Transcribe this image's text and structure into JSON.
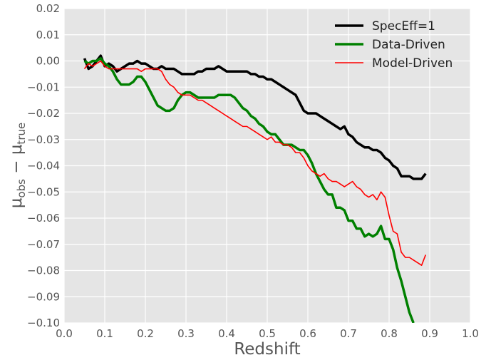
{
  "chart_data": {
    "type": "line",
    "x_label": "Redshift",
    "y_label": [
      "μ",
      "obs",
      " − μ",
      "true"
    ],
    "xlim": [
      0,
      1
    ],
    "ylim": [
      -0.1,
      0.02
    ],
    "grid": true,
    "legend": "upper right",
    "xticks": [
      {
        "value": 0,
        "label": "0.0"
      },
      {
        "value": 0.1,
        "label": "0.1"
      },
      {
        "value": 0.2,
        "label": "0.2"
      },
      {
        "value": 0.3,
        "label": "0.3"
      },
      {
        "value": 0.4,
        "label": "0.4"
      },
      {
        "value": 0.5,
        "label": "0.5"
      },
      {
        "value": 0.6,
        "label": "0.6"
      },
      {
        "value": 0.7,
        "label": "0.7"
      },
      {
        "value": 0.8,
        "label": "0.8"
      },
      {
        "value": 0.9,
        "label": "0.9"
      },
      {
        "value": 1,
        "label": "1.0"
      }
    ],
    "yticks": [
      {
        "value": 0.02,
        "label": "0.02"
      },
      {
        "value": 0.01,
        "label": "0.01"
      },
      {
        "value": 0,
        "label": "0.00"
      },
      {
        "value": -0.01,
        "label": "−0.01"
      },
      {
        "value": -0.02,
        "label": "−0.02"
      },
      {
        "value": -0.03,
        "label": "−0.03"
      },
      {
        "value": -0.04,
        "label": "−0.04"
      },
      {
        "value": -0.05,
        "label": "−0.05"
      },
      {
        "value": -0.06,
        "label": "−0.06"
      },
      {
        "value": -0.07,
        "label": "−0.07"
      },
      {
        "value": -0.08,
        "label": "−0.08"
      },
      {
        "value": -0.09,
        "label": "−0.09"
      },
      {
        "value": -0.1,
        "label": "−0.10"
      }
    ],
    "x": [
      0.05,
      0.06,
      0.07,
      0.08,
      0.09,
      0.1,
      0.11,
      0.12,
      0.13,
      0.14,
      0.15,
      0.16,
      0.17,
      0.18,
      0.19,
      0.2,
      0.21,
      0.22,
      0.23,
      0.24,
      0.25,
      0.26,
      0.27,
      0.28,
      0.29,
      0.3,
      0.31,
      0.32,
      0.33,
      0.34,
      0.35,
      0.36,
      0.37,
      0.38,
      0.39,
      0.4,
      0.41,
      0.42,
      0.43,
      0.44,
      0.45,
      0.46,
      0.47,
      0.48,
      0.49,
      0.5,
      0.51,
      0.52,
      0.53,
      0.54,
      0.55,
      0.56,
      0.57,
      0.58,
      0.59,
      0.6,
      0.61,
      0.62,
      0.63,
      0.64,
      0.65,
      0.66,
      0.67,
      0.68,
      0.69,
      0.7,
      0.71,
      0.72,
      0.73,
      0.74,
      0.75,
      0.76,
      0.77,
      0.78,
      0.79,
      0.8,
      0.81,
      0.82,
      0.83,
      0.84,
      0.85,
      0.86,
      0.87,
      0.88,
      0.89
    ],
    "series": [
      {
        "name": "SpecEff=1",
        "color": "#000000",
        "width": 3.5,
        "values": [
          0.001,
          -0.003,
          -0.002,
          0.0,
          0.002,
          -0.002,
          -0.001,
          -0.002,
          -0.004,
          -0.003,
          -0.002,
          -0.001,
          -0.001,
          0.0,
          -0.001,
          -0.001,
          -0.002,
          -0.003,
          -0.003,
          -0.002,
          -0.003,
          -0.003,
          -0.003,
          -0.004,
          -0.005,
          -0.005,
          -0.005,
          -0.005,
          -0.004,
          -0.004,
          -0.003,
          -0.003,
          -0.003,
          -0.002,
          -0.003,
          -0.004,
          -0.004,
          -0.004,
          -0.004,
          -0.004,
          -0.004,
          -0.005,
          -0.005,
          -0.006,
          -0.006,
          -0.007,
          -0.007,
          -0.008,
          -0.009,
          -0.01,
          -0.011,
          -0.012,
          -0.013,
          -0.016,
          -0.019,
          -0.02,
          -0.02,
          -0.02,
          -0.021,
          -0.022,
          -0.023,
          -0.024,
          -0.025,
          -0.026,
          -0.025,
          -0.028,
          -0.029,
          -0.031,
          -0.032,
          -0.033,
          -0.033,
          -0.034,
          -0.034,
          -0.035,
          -0.037,
          -0.038,
          -0.04,
          -0.041,
          -0.044,
          -0.044,
          -0.044,
          -0.045,
          -0.045,
          -0.045,
          -0.043
        ]
      },
      {
        "name": "Data-Driven",
        "color": "#008000",
        "width": 3.5,
        "values": [
          0.0,
          -0.001,
          0.0,
          0.0,
          0.001,
          -0.001,
          -0.002,
          -0.004,
          -0.007,
          -0.009,
          -0.009,
          -0.009,
          -0.008,
          -0.006,
          -0.006,
          -0.008,
          -0.011,
          -0.014,
          -0.017,
          -0.018,
          -0.019,
          -0.019,
          -0.018,
          -0.015,
          -0.013,
          -0.012,
          -0.012,
          -0.013,
          -0.014,
          -0.014,
          -0.014,
          -0.014,
          -0.014,
          -0.013,
          -0.013,
          -0.013,
          -0.013,
          -0.014,
          -0.016,
          -0.018,
          -0.019,
          -0.021,
          -0.022,
          -0.024,
          -0.025,
          -0.027,
          -0.028,
          -0.028,
          -0.03,
          -0.032,
          -0.032,
          -0.032,
          -0.033,
          -0.034,
          -0.034,
          -0.036,
          -0.039,
          -0.043,
          -0.046,
          -0.049,
          -0.051,
          -0.051,
          -0.056,
          -0.056,
          -0.057,
          -0.061,
          -0.061,
          -0.064,
          -0.064,
          -0.067,
          -0.066,
          -0.067,
          -0.066,
          -0.063,
          -0.068,
          -0.068,
          -0.072,
          -0.079,
          -0.084,
          -0.09,
          -0.096,
          -0.1,
          null,
          null,
          null
        ]
      },
      {
        "name": "Model-Driven",
        "color": "#ff0000",
        "width": 1.6,
        "values": [
          -0.003,
          -0.001,
          -0.002,
          -0.001,
          0.0,
          -0.002,
          -0.003,
          -0.003,
          -0.003,
          -0.003,
          -0.003,
          -0.003,
          -0.003,
          -0.003,
          -0.004,
          -0.003,
          -0.003,
          -0.003,
          -0.003,
          -0.004,
          -0.007,
          -0.009,
          -0.01,
          -0.012,
          -0.013,
          -0.013,
          -0.013,
          -0.014,
          -0.015,
          -0.015,
          -0.016,
          -0.017,
          -0.018,
          -0.019,
          -0.02,
          -0.021,
          -0.022,
          -0.023,
          -0.024,
          -0.025,
          -0.025,
          -0.026,
          -0.027,
          -0.028,
          -0.029,
          -0.03,
          -0.029,
          -0.031,
          -0.031,
          -0.032,
          -0.032,
          -0.033,
          -0.035,
          -0.035,
          -0.037,
          -0.04,
          -0.042,
          -0.043,
          -0.044,
          -0.043,
          -0.045,
          -0.046,
          -0.046,
          -0.047,
          -0.048,
          -0.047,
          -0.046,
          -0.048,
          -0.049,
          -0.051,
          -0.052,
          -0.051,
          -0.053,
          -0.05,
          -0.052,
          -0.059,
          -0.065,
          -0.066,
          -0.073,
          -0.075,
          -0.075,
          -0.076,
          -0.077,
          -0.078,
          -0.074
        ]
      }
    ]
  }
}
